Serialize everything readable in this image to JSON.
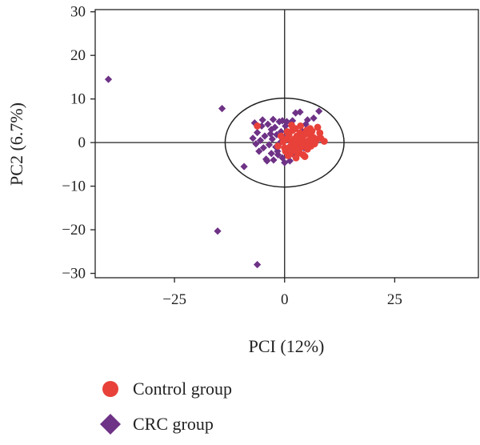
{
  "chart_data": {
    "type": "scatter",
    "title": "",
    "xlabel": "PCI (12%)",
    "ylabel": "PC2 (6.7%)",
    "xlim": [
      -43,
      44
    ],
    "ylim": [
      -31,
      30.5
    ],
    "xticks": [
      -25,
      0,
      25
    ],
    "yticks": [
      -30,
      -20,
      -10,
      0,
      10,
      20,
      30
    ],
    "xtick_labels": [
      "−25",
      "0",
      "25"
    ],
    "ytick_labels": [
      "−30",
      "−20",
      "−10",
      "0",
      "10",
      "20",
      "30"
    ],
    "grid": false,
    "reference_lines": {
      "x": 0,
      "y": 0
    },
    "ellipse": {
      "center": [
        0,
        0
      ],
      "rx": 13.5,
      "ry": 10.2
    },
    "legend_position": "bottom-left",
    "series": [
      {
        "name": "Control group",
        "marker": "circle",
        "color": "#e8413a",
        "points": [
          [
            -6.2,
            3.8
          ],
          [
            -1.5,
            -0.8
          ],
          [
            -0.8,
            1.5
          ],
          [
            0.2,
            -2.0
          ],
          [
            0.5,
            0.8
          ],
          [
            0.8,
            -3.0
          ],
          [
            1.0,
            1.8
          ],
          [
            1.2,
            -1.0
          ],
          [
            1.5,
            0.3
          ],
          [
            1.8,
            2.8
          ],
          [
            2.0,
            -1.8
          ],
          [
            2.2,
            0.8
          ],
          [
            2.5,
            -0.5
          ],
          [
            2.8,
            1.5
          ],
          [
            3.0,
            -2.5
          ],
          [
            3.2,
            0.2
          ],
          [
            3.5,
            2.2
          ],
          [
            3.8,
            -1.0
          ],
          [
            4.0,
            0.8
          ],
          [
            4.2,
            -2.8
          ],
          [
            4.5,
            1.8
          ],
          [
            4.8,
            -0.2
          ],
          [
            5.0,
            2.8
          ],
          [
            5.2,
            -1.5
          ],
          [
            5.5,
            0.5
          ],
          [
            5.8,
            3.2
          ],
          [
            6.0,
            -0.8
          ],
          [
            6.5,
            1.2
          ],
          [
            7.0,
            0.2
          ],
          [
            7.5,
            3.5
          ],
          [
            8.0,
            2.2
          ],
          [
            9.0,
            0.3
          ],
          [
            0.0,
            -1.2
          ],
          [
            1.6,
            4.0
          ],
          [
            2.6,
            -3.5
          ],
          [
            3.6,
            3.8
          ],
          [
            4.6,
            -3.2
          ],
          [
            5.6,
            2.0
          ],
          [
            6.8,
            -0.3
          ],
          [
            8.2,
            1.0
          ],
          [
            0.6,
            2.5
          ],
          [
            -0.3,
            0.2
          ],
          [
            1.3,
            -2.6
          ],
          [
            2.4,
            3.2
          ],
          [
            3.3,
            -1.6
          ],
          [
            4.4,
            0.0
          ],
          [
            5.3,
            -0.6
          ],
          [
            6.2,
            2.6
          ],
          [
            7.3,
            0.8
          ],
          [
            2.9,
            0.6
          ],
          [
            3.9,
            1.2
          ],
          [
            1.9,
            -0.4
          ]
        ]
      },
      {
        "name": "CRC group",
        "marker": "diamond",
        "color": "#6e3286",
        "points": [
          [
            -40.0,
            14.5
          ],
          [
            -14.2,
            7.8
          ],
          [
            -15.2,
            -20.3
          ],
          [
            -6.2,
            -28.0
          ],
          [
            -9.2,
            -5.5
          ],
          [
            -6.8,
            4.5
          ],
          [
            -6.2,
            2.3
          ],
          [
            -5.5,
            0.5
          ],
          [
            -5.8,
            -2.0
          ],
          [
            -5.2,
            3.8
          ],
          [
            -4.8,
            -1.2
          ],
          [
            -4.5,
            1.5
          ],
          [
            -4.2,
            -3.8
          ],
          [
            -3.8,
            4.2
          ],
          [
            -3.5,
            -0.5
          ],
          [
            -3.2,
            2.0
          ],
          [
            -3.0,
            -2.5
          ],
          [
            -2.8,
            0.8
          ],
          [
            -2.5,
            -4.0
          ],
          [
            -2.2,
            3.5
          ],
          [
            -2.0,
            -1.0
          ],
          [
            -1.8,
            1.8
          ],
          [
            -1.5,
            -2.8
          ],
          [
            -1.2,
            4.8
          ],
          [
            -1.0,
            0.0
          ],
          [
            -0.8,
            2.5
          ],
          [
            -0.5,
            -3.5
          ],
          [
            -0.2,
            1.2
          ],
          [
            0.2,
            3.8
          ],
          [
            0.5,
            -1.5
          ],
          [
            0.8,
            2.0
          ],
          [
            1.2,
            -4.2
          ],
          [
            1.8,
            5.0
          ],
          [
            2.5,
            6.8
          ],
          [
            3.5,
            7.0
          ],
          [
            4.8,
            4.2
          ],
          [
            6.2,
            2.8
          ],
          [
            7.8,
            7.2
          ],
          [
            5.2,
            5.2
          ],
          [
            -0.5,
            5.0
          ],
          [
            0.5,
            4.8
          ],
          [
            2.2,
            -3.0
          ],
          [
            -4.0,
            -4.2
          ],
          [
            -6.5,
            -0.3
          ],
          [
            -3.0,
            3.0
          ],
          [
            1.0,
            0.5
          ],
          [
            2.8,
            1.0
          ],
          [
            3.2,
            -2.0
          ],
          [
            4.0,
            2.6
          ],
          [
            -1.6,
            -2.0
          ],
          [
            0.0,
            -4.6
          ],
          [
            -2.6,
            5.3
          ],
          [
            4.4,
            -1.2
          ],
          [
            6.6,
            5.6
          ],
          [
            -7.2,
            1.0
          ],
          [
            -5.0,
            5.2
          ]
        ]
      }
    ]
  },
  "legend": {
    "items": [
      {
        "label": "Control group",
        "color": "#e8413a",
        "marker": "circle"
      },
      {
        "label": "CRC group",
        "color": "#6e3286",
        "marker": "diamond"
      }
    ]
  }
}
